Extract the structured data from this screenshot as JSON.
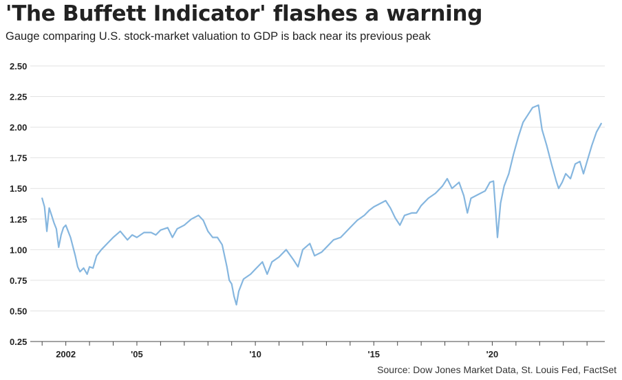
{
  "title": "'The Buffett Indicator' flashes a warning",
  "subtitle": "Gauge comparing U.S. stock-market valuation to GDP is back near its previous peak",
  "source": "Source: Dow Jones Market Data, St. Louis Fed, FactSet",
  "chart_data": {
    "type": "line",
    "title": "'The Buffett Indicator' flashes a warning",
    "subtitle": "Gauge comparing U.S. stock-market valuation to GDP is back near its previous peak",
    "xlabel": "",
    "ylabel": "",
    "xlim": [
      2000.5,
      2024.75
    ],
    "ylim": [
      0.25,
      2.5
    ],
    "yticks": [
      "2.50",
      "2.25",
      "2.00",
      "1.75",
      "1.50",
      "1.25",
      "1.00",
      "0.75",
      "0.50",
      "0.25"
    ],
    "ytick_values": [
      2.5,
      2.25,
      2.0,
      1.75,
      1.5,
      1.25,
      1.0,
      0.75,
      0.5,
      0.25
    ],
    "xticks": [
      "2002",
      "'05",
      "'10",
      "'15",
      "'20"
    ],
    "xtick_values": [
      2002,
      2005,
      2010,
      2015,
      2020
    ],
    "grid": true,
    "color": "#85b6df",
    "series": [
      {
        "x": [
          2001.0,
          2001.1,
          2001.2,
          2001.3,
          2001.4,
          2001.5,
          2001.6,
          2001.7,
          2001.8,
          2001.9,
          2002.0,
          2002.2,
          2002.4,
          2002.5,
          2002.6,
          2002.75,
          2002.9,
          2003.0,
          2003.15,
          2003.3,
          2003.5,
          2003.75,
          2004.0,
          2004.3,
          2004.6,
          2004.8,
          2005.0,
          2005.3,
          2005.6,
          2005.8,
          2006.0,
          2006.3,
          2006.5,
          2006.7,
          2007.0,
          2007.3,
          2007.6,
          2007.8,
          2008.0,
          2008.2,
          2008.4,
          2008.6,
          2008.8,
          2008.9,
          2009.0,
          2009.1,
          2009.2,
          2009.3,
          2009.5,
          2009.8,
          2010.0,
          2010.3,
          2010.5,
          2010.7,
          2011.0,
          2011.3,
          2011.6,
          2011.8,
          2012.0,
          2012.3,
          2012.5,
          2012.8,
          2013.0,
          2013.3,
          2013.6,
          2013.8,
          2014.0,
          2014.3,
          2014.6,
          2014.8,
          2015.0,
          2015.3,
          2015.5,
          2015.7,
          2015.9,
          2016.1,
          2016.3,
          2016.6,
          2016.8,
          2017.0,
          2017.3,
          2017.6,
          2017.9,
          2018.1,
          2018.3,
          2018.6,
          2018.8,
          2018.95,
          2019.1,
          2019.4,
          2019.7,
          2019.9,
          2020.05,
          2020.15,
          2020.22,
          2020.35,
          2020.5,
          2020.7,
          2020.9,
          2021.1,
          2021.3,
          2021.5,
          2021.7,
          2021.95,
          2022.1,
          2022.3,
          2022.5,
          2022.7,
          2022.8,
          2022.95,
          2023.1,
          2023.3,
          2023.5,
          2023.7,
          2023.85,
          2024.0,
          2024.2,
          2024.4,
          2024.6
        ],
        "values": [
          1.42,
          1.35,
          1.15,
          1.34,
          1.28,
          1.22,
          1.17,
          1.02,
          1.12,
          1.18,
          1.2,
          1.1,
          0.95,
          0.86,
          0.82,
          0.85,
          0.8,
          0.86,
          0.85,
          0.95,
          1.0,
          1.05,
          1.1,
          1.15,
          1.08,
          1.12,
          1.1,
          1.14,
          1.14,
          1.12,
          1.16,
          1.18,
          1.1,
          1.17,
          1.2,
          1.25,
          1.28,
          1.24,
          1.15,
          1.1,
          1.1,
          1.04,
          0.86,
          0.75,
          0.72,
          0.62,
          0.55,
          0.66,
          0.76,
          0.8,
          0.84,
          0.9,
          0.8,
          0.9,
          0.94,
          1.0,
          0.92,
          0.86,
          1.0,
          1.05,
          0.95,
          0.98,
          1.02,
          1.08,
          1.1,
          1.14,
          1.18,
          1.24,
          1.28,
          1.32,
          1.35,
          1.38,
          1.4,
          1.34,
          1.26,
          1.2,
          1.28,
          1.3,
          1.3,
          1.36,
          1.42,
          1.46,
          1.52,
          1.58,
          1.5,
          1.55,
          1.44,
          1.3,
          1.42,
          1.45,
          1.48,
          1.55,
          1.56,
          1.3,
          1.1,
          1.38,
          1.52,
          1.62,
          1.78,
          1.92,
          2.04,
          2.1,
          2.16,
          2.18,
          1.98,
          1.85,
          1.7,
          1.56,
          1.5,
          1.55,
          1.62,
          1.58,
          1.7,
          1.72,
          1.62,
          1.72,
          1.85,
          1.96,
          2.03
        ]
      }
    ]
  }
}
